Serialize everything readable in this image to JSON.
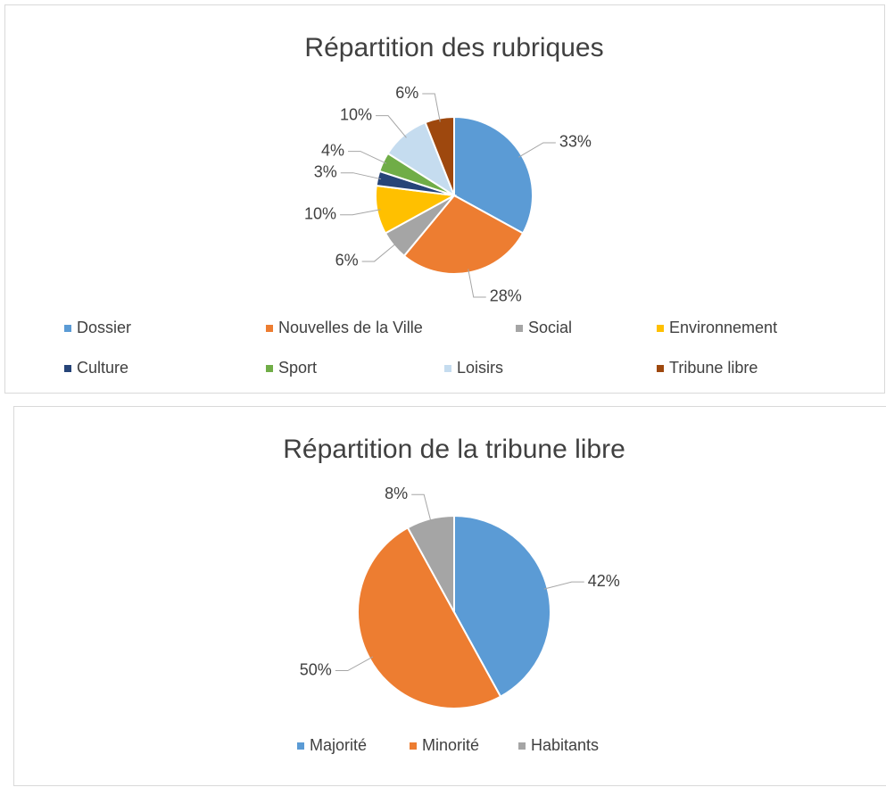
{
  "chart_data": [
    {
      "type": "pie",
      "title": "Répartition des rubriques",
      "categories": [
        "Dossier",
        "Nouvelles de la Ville",
        "Social",
        "Environnement",
        "Culture",
        "Sport",
        "Loisirs",
        "Tribune libre"
      ],
      "values": [
        33,
        28,
        6,
        10,
        3,
        4,
        10,
        6
      ],
      "value_labels": [
        "33%",
        "28%",
        "6%",
        "10%",
        "3%",
        "4%",
        "10%",
        "6%"
      ],
      "colors": [
        "#5b9bd5",
        "#ed7d31",
        "#a5a5a5",
        "#ffc000",
        "#264478",
        "#70ad47",
        "#c5dcef",
        "#9e480e"
      ],
      "legend": "bottom"
    },
    {
      "type": "pie",
      "title": "Répartition de la tribune libre",
      "categories": [
        "Majorité",
        "Minorité",
        "Habitants"
      ],
      "values": [
        42,
        50,
        8
      ],
      "value_labels": [
        "42%",
        "50%",
        "8%"
      ],
      "colors": [
        "#5b9bd5",
        "#ed7d31",
        "#a5a5a5"
      ],
      "legend": "bottom"
    }
  ]
}
